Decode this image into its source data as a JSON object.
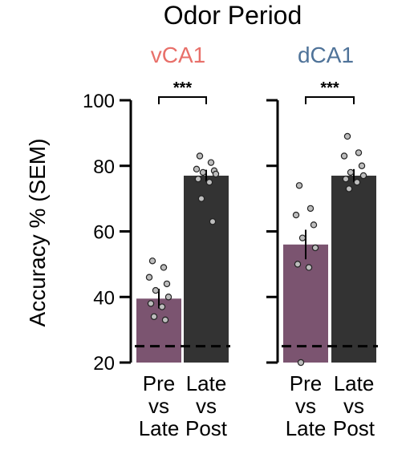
{
  "chart_data": {
    "type": "bar",
    "title": "Odor Period",
    "ylabel": "Accuracy % (SEM)",
    "ylim": [
      20,
      100
    ],
    "yticks": [
      20,
      40,
      60,
      80,
      100
    ],
    "chance_level": 25,
    "categories": [
      [
        "Pre",
        "vs",
        "Late"
      ],
      [
        "Late",
        "vs",
        "Post"
      ]
    ],
    "panels": [
      {
        "title": "vCA1",
        "title_color": "#e8706a",
        "significance": "***",
        "bars": [
          {
            "value": 39.5,
            "sem": 3,
            "color": "#7b5470",
            "points": [
              51,
              49,
              46,
              44,
              42,
              40,
              38,
              37,
              34,
              33
            ]
          },
          {
            "value": 77,
            "sem": 1.8,
            "color": "#333333",
            "points": [
              83,
              81,
              79,
              78.5,
              78,
              77.5,
              76,
              75,
              70,
              63
            ]
          }
        ]
      },
      {
        "title": "dCA1",
        "title_color": "#4f7399",
        "significance": "***",
        "bars": [
          {
            "value": 56,
            "sem": 4.5,
            "color": "#7b5470",
            "points": [
              74,
              67,
              65,
              62,
              58,
              55,
              50,
              49,
              20
            ]
          },
          {
            "value": 77,
            "sem": 2,
            "color": "#333333",
            "points": [
              89,
              84,
              83,
              80,
              78,
              77,
              76,
              75,
              73
            ]
          }
        ]
      }
    ]
  }
}
